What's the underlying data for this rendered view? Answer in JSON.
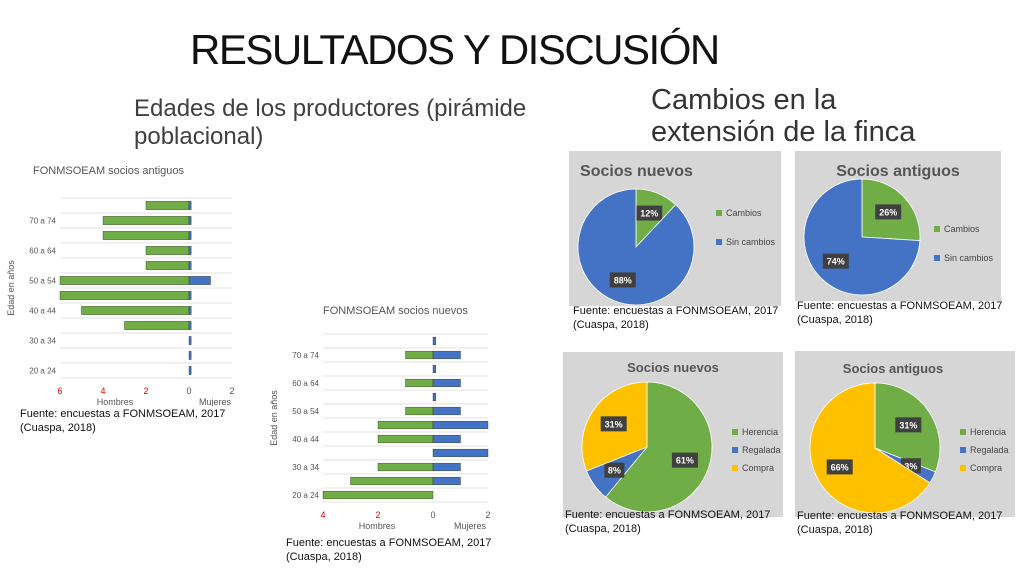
{
  "header": {
    "title": "RESULTADOS Y DISCUSIÓN",
    "left_subtitle": "Edades de los productores (pirámide poblacional)",
    "right_subtitle": "Cambios en la extensión de la finca"
  },
  "source_line1": "Fuente: encuestas a FONMSOEAM, 2017",
  "source_line2": "(Cuaspa, 2018)",
  "colors": {
    "green": "#70ad47",
    "blue": "#4472c4",
    "yellow": "#ffc000"
  },
  "chart_data": [
    {
      "type": "bar",
      "title": "FONMSOEAM socios antiguos",
      "ylabel": "Edad en años",
      "xlabels": [
        "Hombres",
        "Mujeres"
      ],
      "xticks": [
        "6",
        "4",
        "2",
        "0",
        "2"
      ],
      "xlim": [
        -6,
        2
      ],
      "yticks": [
        "20 a 24",
        "30 a 34",
        "40 a 44",
        "50 a 54",
        "60 a 64",
        "70 a 74"
      ],
      "series": [
        {
          "name": "Hombres",
          "values": [
            0,
            0,
            0,
            -3,
            -5,
            -6,
            -6,
            -2,
            -2,
            -4,
            -4,
            -2
          ]
        },
        {
          "name": "Mujeres",
          "values": [
            0.1,
            0.1,
            0.1,
            0.1,
            0.1,
            0.1,
            1,
            0.1,
            0.1,
            0.1,
            0.1,
            0.1
          ]
        }
      ]
    },
    {
      "type": "bar",
      "title": "FONMSOEAM socios nuevos",
      "ylabel": "Edad en años",
      "xlabels": [
        "Hombres",
        "Mujeres"
      ],
      "xticks": [
        "4",
        "2",
        "0",
        "2"
      ],
      "xlim": [
        -4,
        2
      ],
      "yticks": [
        "20 a 24",
        "30 a 34",
        "40 a 44",
        "50 a 54",
        "60 a 64",
        "70 a 74"
      ],
      "series": [
        {
          "name": "Hombres",
          "values": [
            -4,
            -3,
            -2,
            0,
            -2,
            -2,
            -1,
            0,
            -1,
            0,
            -1,
            0
          ]
        },
        {
          "name": "Mujeres",
          "values": [
            0,
            1,
            1,
            2,
            1,
            2,
            1,
            0.1,
            1,
            0.1,
            1,
            0.1
          ]
        }
      ]
    },
    {
      "type": "pie",
      "title": "Socios nuevos",
      "labels": [
        "Cambios",
        "Sin cambios"
      ],
      "values": [
        12,
        88
      ],
      "data_labels": [
        "12%",
        "88%"
      ]
    },
    {
      "type": "pie",
      "title": "Socios antiguos",
      "labels": [
        "Cambios",
        "Sin cambios"
      ],
      "values": [
        26,
        74
      ],
      "data_labels": [
        "26%",
        "74%"
      ]
    },
    {
      "type": "pie",
      "title": "Socios nuevos",
      "labels": [
        "Herencia",
        "Regalada",
        "Compra"
      ],
      "values": [
        61,
        8,
        31
      ],
      "data_labels": [
        "61%",
        "8%",
        "31%"
      ]
    },
    {
      "type": "pie",
      "title": "Socios antiguos",
      "labels": [
        "Herencia",
        "Regalada",
        "Compra"
      ],
      "values": [
        31,
        3,
        66
      ],
      "data_labels": [
        "31%",
        "3%",
        "66%"
      ]
    }
  ]
}
